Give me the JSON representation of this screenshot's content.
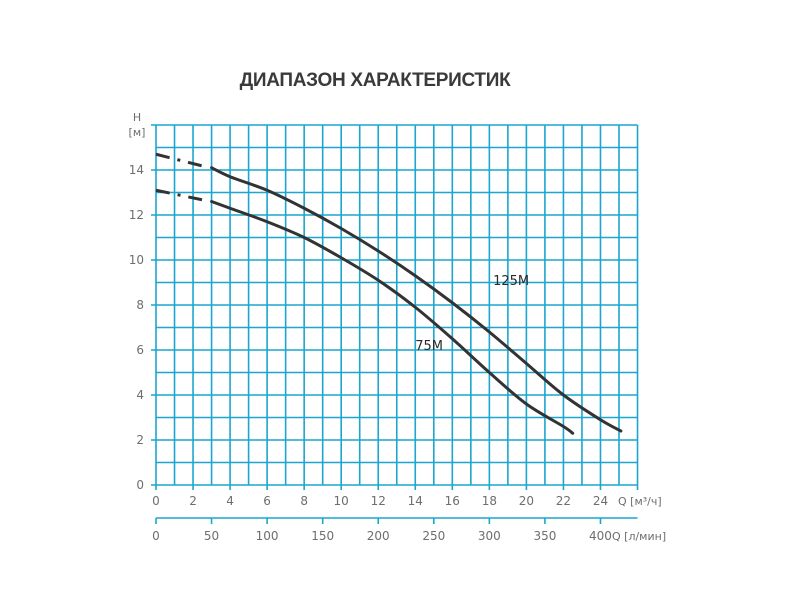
{
  "chart_data": {
    "type": "line",
    "title": "ДИАПАЗОН ХАРАКТЕРИСТИК",
    "ylabel": "H",
    "yunit": "[м]",
    "xlabel": "Q [м³/ч]",
    "x2label": "Q [л/мин]",
    "ylim": [
      0,
      16
    ],
    "xlim": [
      0,
      26
    ],
    "grid": true,
    "grid_color": "#1aa6cf",
    "y_ticks": [
      0,
      2,
      4,
      6,
      8,
      10,
      12,
      14
    ],
    "x_ticks": [
      0,
      2,
      4,
      6,
      8,
      10,
      12,
      14,
      16,
      18,
      20,
      22,
      24
    ],
    "x2_ticks": [
      0,
      50,
      100,
      150,
      200,
      250,
      300,
      350,
      400
    ],
    "series": [
      {
        "name": "125M",
        "dashed_until_x": 3,
        "x": [
          0,
          3,
          4,
          6,
          8,
          10,
          12,
          14,
          16,
          18,
          20,
          22,
          24,
          25.1
        ],
        "y": [
          14.7,
          14.1,
          13.7,
          13.1,
          12.3,
          11.4,
          10.4,
          9.3,
          8.1,
          6.8,
          5.4,
          4.0,
          2.9,
          2.4
        ]
      },
      {
        "name": "75M",
        "dashed_until_x": 3,
        "x": [
          0,
          3,
          4,
          6,
          8,
          10,
          12,
          14,
          16,
          18,
          20,
          22,
          22.5
        ],
        "y": [
          13.1,
          12.6,
          12.3,
          11.7,
          11.0,
          10.1,
          9.1,
          7.9,
          6.5,
          5.0,
          3.6,
          2.6,
          2.3
        ]
      }
    ],
    "annotations": [
      {
        "text": "125M",
        "x": 18.2,
        "y": 8.9
      },
      {
        "text": "75M",
        "x": 14.0,
        "y": 6.0
      }
    ]
  }
}
